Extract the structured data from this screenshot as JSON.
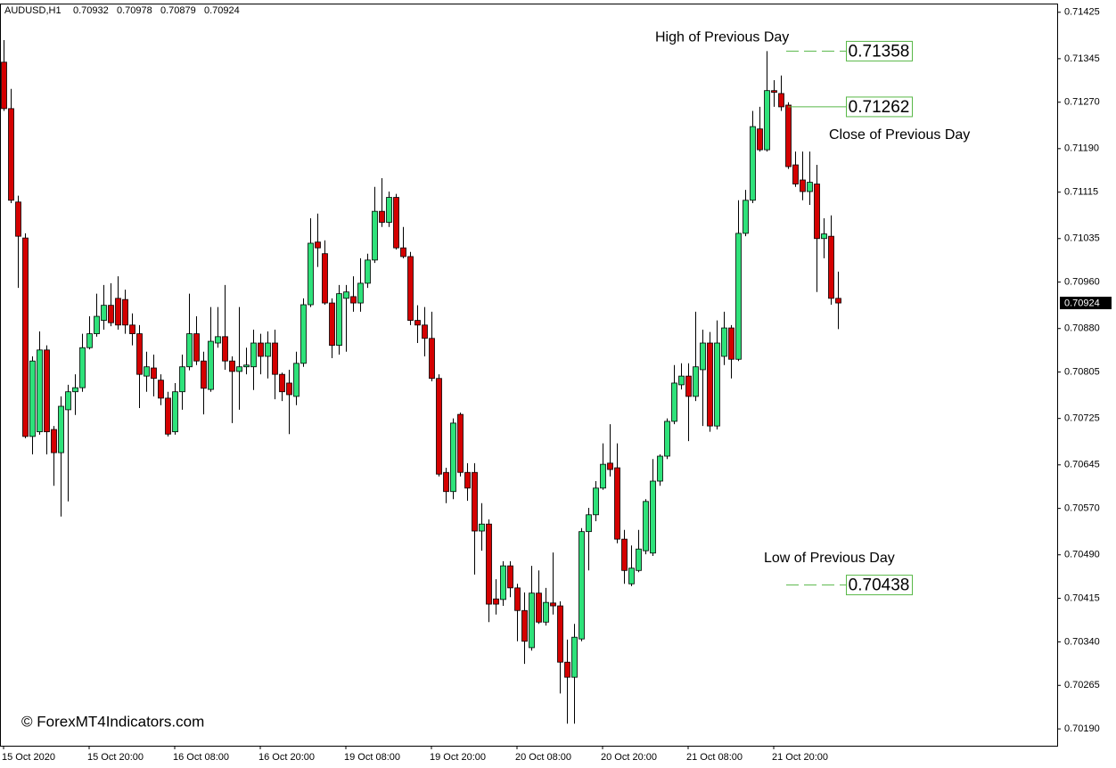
{
  "chart_data": {
    "type": "candlestick",
    "symbol": "AUDUSD,H1",
    "copyright": "© ForexMT4Indicators.com",
    "categories": [
      "15 Oct 2020",
      null,
      null,
      null,
      null,
      null,
      null,
      null,
      null,
      null,
      null,
      null,
      "15 Oct 20:00",
      null,
      null,
      null,
      null,
      null,
      null,
      null,
      null,
      null,
      null,
      null,
      "16 Oct 08:00",
      null,
      null,
      null,
      null,
      null,
      null,
      null,
      null,
      null,
      null,
      null,
      "16 Oct 20:00",
      null,
      null,
      null,
      null,
      null,
      null,
      null,
      null,
      null,
      null,
      null,
      "19 Oct 08:00",
      null,
      null,
      null,
      null,
      null,
      null,
      null,
      null,
      null,
      null,
      null,
      "19 Oct 20:00",
      null,
      null,
      null,
      null,
      null,
      null,
      null,
      null,
      null,
      null,
      null,
      "20 Oct 08:00",
      null,
      null,
      null,
      null,
      null,
      null,
      null,
      null,
      null,
      null,
      null,
      "20 Oct 20:00",
      null,
      null,
      null,
      null,
      null,
      null,
      null,
      null,
      null,
      null,
      null,
      "21 Oct 08:00",
      null,
      null,
      null,
      null,
      null,
      null,
      null,
      null,
      null,
      null,
      null,
      "21 Oct 20:00",
      null,
      null,
      null,
      null,
      null,
      null,
      null,
      null,
      null
    ],
    "open": [
      0.71339,
      0.71259,
      0.71098,
      0.71036,
      0.70694,
      0.70702,
      0.70843,
      0.70706,
      0.70666,
      0.7074,
      0.70771,
      0.70778,
      0.70847,
      0.70871,
      0.70894,
      0.7092,
      0.70932,
      0.7093,
      0.70886,
      0.70871,
      0.70798,
      0.70812,
      0.70791,
      0.7076,
      0.70702,
      0.70771,
      0.70814,
      0.70871,
      0.70824,
      0.70775,
      0.70855,
      0.70866,
      0.70824,
      0.70806,
      0.70814,
      0.70814,
      0.70855,
      0.70832,
      0.70855,
      0.70801,
      0.70786,
      0.70763,
      0.7082,
      0.70921,
      0.71029,
      0.71009,
      0.70924,
      0.70851,
      0.70932,
      0.70935,
      0.70924,
      0.70958,
      0.70998,
      0.71082,
      0.71063,
      0.71106,
      0.71019,
      0.71004,
      0.70894,
      0.70886,
      0.70863,
      0.70794,
      0.70632,
      0.70599,
      0.70732,
      0.70632,
      0.70632,
      0.70531,
      0.70543,
      0.70414,
      0.70413,
      0.70471,
      0.70433,
      0.70394,
      0.7033,
      0.70424,
      0.70374,
      0.70407,
      0.70402,
      0.70305,
      0.70279,
      0.70345,
      0.7053,
      0.70559,
      0.70605,
      0.70648,
      0.7064,
      0.70517,
      0.7044,
      0.70463,
      0.70497,
      0.70493,
      0.70617,
      0.7066,
      0.7072,
      0.70783,
      0.70798,
      0.70763,
      0.70809,
      0.70855,
      0.70712,
      0.70832,
      0.70881,
      0.70827,
      0.71044,
      0.71101,
      0.71224,
      0.71188,
      0.7129,
      0.71285,
      0.71265,
      0.71162,
      0.71136,
      0.71116,
      0.71129,
      0.71035,
      0.71039,
      0.70932
    ],
    "high": [
      0.71377,
      0.71293,
      0.71109,
      0.71044,
      0.70832,
      0.70875,
      0.70851,
      0.70712,
      0.70763,
      0.70783,
      0.70801,
      0.70871,
      0.70901,
      0.7094,
      0.70955,
      0.70958,
      0.7097,
      0.70947,
      0.70906,
      0.70886,
      0.7084,
      0.70835,
      0.70801,
      0.70771,
      0.70786,
      0.70835,
      0.7094,
      0.70901,
      0.7084,
      0.70917,
      0.70917,
      0.70955,
      0.70832,
      0.70917,
      0.70847,
      0.70878,
      0.70871,
      0.70875,
      0.70878,
      0.70804,
      0.70809,
      0.7084,
      0.70932,
      0.7107,
      0.71078,
      0.71032,
      0.70932,
      0.70955,
      0.70955,
      0.7097,
      0.71001,
      0.71009,
      0.71124,
      0.71139,
      0.71116,
      0.71112,
      0.71055,
      0.71012,
      0.7092,
      0.70917,
      0.70909,
      0.70801,
      0.7064,
      0.70725,
      0.70735,
      0.70648,
      0.70648,
      0.70579,
      0.70551,
      0.70448,
      0.70479,
      0.70479,
      0.7044,
      0.70425,
      0.70471,
      0.70463,
      0.70433,
      0.70494,
      0.7041,
      0.70344,
      0.70371,
      0.70536,
      0.70571,
      0.70617,
      0.70682,
      0.70715,
      0.70682,
      0.70533,
      0.70506,
      0.70533,
      0.70586,
      0.70655,
      0.70663,
      0.70725,
      0.70817,
      0.7082,
      0.7082,
      0.70909,
      0.70878,
      0.70874,
      0.70894,
      0.70909,
      0.70886,
      0.71101,
      0.71119,
      0.71255,
      0.71262,
      0.71358,
      0.71308,
      0.71316,
      0.7127,
      0.71185,
      0.71185,
      0.71185,
      0.71162,
      0.7107,
      0.71075,
      0.70978
    ],
    "low": [
      0.71255,
      0.71096,
      0.7095,
      0.70691,
      0.70663,
      0.70697,
      0.70663,
      0.70609,
      0.70556,
      0.70582,
      0.70731,
      0.70771,
      0.70844,
      0.70866,
      0.70878,
      0.70884,
      0.70878,
      0.70871,
      0.70851,
      0.70743,
      0.70771,
      0.70763,
      0.70748,
      0.70694,
      0.70697,
      0.7074,
      0.70808,
      0.70817,
      0.70732,
      0.70771,
      0.70847,
      0.70809,
      0.70717,
      0.7074,
      0.70801,
      0.70774,
      0.70801,
      0.70794,
      0.70758,
      0.70755,
      0.70698,
      0.70748,
      0.70814,
      0.70917,
      0.70986,
      0.70921,
      0.70829,
      0.70835,
      0.7084,
      0.70909,
      0.70909,
      0.7095,
      0.70993,
      0.71055,
      0.71055,
      0.71016,
      0.71001,
      0.70886,
      0.70855,
      0.70832,
      0.70789,
      0.70625,
      0.70579,
      0.70586,
      0.70625,
      0.70583,
      0.70456,
      0.70497,
      0.70374,
      0.70387,
      0.70402,
      0.70417,
      0.70341,
      0.70302,
      0.70325,
      0.70371,
      0.70368,
      0.70387,
      0.70251,
      0.70199,
      0.70199,
      0.70341,
      0.70463,
      0.70548,
      0.70602,
      0.70625,
      0.7051,
      0.7044,
      0.70436,
      0.7046,
      0.70491,
      0.70488,
      0.70609,
      0.70655,
      0.70715,
      0.70775,
      0.70686,
      0.70755,
      0.70712,
      0.70702,
      0.70706,
      0.70817,
      0.70794,
      0.70824,
      0.71039,
      0.71096,
      0.71185,
      0.71185,
      0.71262,
      0.71255,
      0.71155,
      0.71124,
      0.71101,
      0.71093,
      0.70943,
      0.71001,
      0.70921,
      0.70879
    ],
    "close": [
      0.71259,
      0.71101,
      0.71039,
      0.70694,
      0.70824,
      0.70843,
      0.70702,
      0.70666,
      0.70746,
      0.70771,
      0.70778,
      0.70847,
      0.70871,
      0.70901,
      0.7092,
      0.7089,
      0.70886,
      0.70886,
      0.70871,
      0.70801,
      0.70814,
      0.70794,
      0.7076,
      0.70698,
      0.70771,
      0.70814,
      0.70871,
      0.70824,
      0.70777,
      0.70858,
      0.70866,
      0.70824,
      0.70806,
      0.70814,
      0.70817,
      0.70855,
      0.70832,
      0.70855,
      0.70801,
      0.70771,
      0.70766,
      0.7082,
      0.70921,
      0.71027,
      0.71019,
      0.70924,
      0.70851,
      0.7094,
      0.70943,
      0.70924,
      0.70958,
      0.70998,
      0.71082,
      0.71063,
      0.71106,
      0.71019,
      0.71004,
      0.70894,
      0.70886,
      0.70863,
      0.70794,
      0.70629,
      0.70599,
      0.70717,
      0.70632,
      0.70605,
      0.70531,
      0.70543,
      0.70405,
      0.70405,
      0.70471,
      0.70433,
      0.70394,
      0.70341,
      0.70424,
      0.70374,
      0.70408,
      0.70402,
      0.70305,
      0.70279,
      0.70348,
      0.7053,
      0.70559,
      0.70605,
      0.70646,
      0.70637,
      0.70517,
      0.70463,
      0.70467,
      0.705,
      0.70582,
      0.70617,
      0.7066,
      0.7072,
      0.70786,
      0.70798,
      0.70763,
      0.70814,
      0.70855,
      0.70712,
      0.70855,
      0.70881,
      0.70827,
      0.71044,
      0.71101,
      0.71228,
      0.71188,
      0.7129,
      0.71287,
      0.71262,
      0.71159,
      0.71129,
      0.71116,
      0.71132,
      0.71035,
      0.71043,
      0.70932,
      0.70924
    ],
    "up_color": "#2ee27a",
    "down_color": "#d40000",
    "ylim": [
      0.70161,
      0.7144
    ],
    "yticks": [
      0.71425,
      0.71345,
      {
        "value": 0.7127,
        "label": "0.71270"
      },
      {
        "value": 0.7119,
        "label": "0.71190"
      },
      0.71115,
      0.71035,
      {
        "value": 0.7096,
        "label": "0.70960"
      },
      {
        "value": 0.7088,
        "label": "0.70880"
      },
      0.70805,
      0.70725,
      0.70645,
      {
        "value": 0.7057,
        "label": "0.70570"
      },
      {
        "value": 0.7049,
        "label": "0.70490"
      },
      0.70415,
      {
        "value": 0.7034,
        "label": "0.70340"
      },
      0.70265,
      {
        "value": 0.7019,
        "label": "0.70190"
      }
    ],
    "levels": [
      {
        "name": "High of Previous Day",
        "value": 0.71358,
        "style": "dashed"
      },
      {
        "name": "Close of Previous Day",
        "value": 0.71262,
        "style": "solid"
      },
      {
        "name": "Low of Previous Day",
        "value": 0.70438,
        "style": "dashed"
      }
    ],
    "level_color": "#58b847"
  }
}
